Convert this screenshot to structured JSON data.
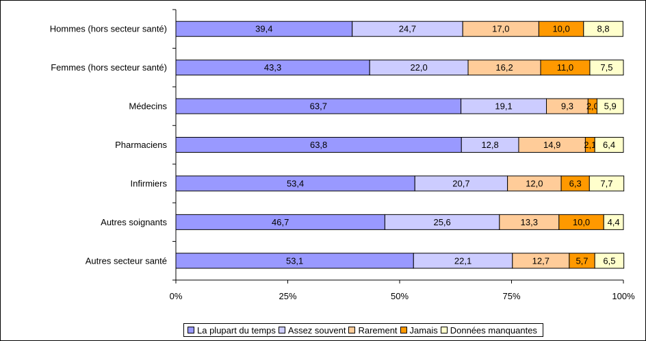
{
  "chart_data": {
    "type": "bar",
    "orientation": "horizontal",
    "stacked": true,
    "percent": true,
    "categories": [
      "Hommes (hors secteur santé)",
      "Femmes (hors secteur santé)",
      "Médecins",
      "Pharmaciens",
      "Infirmiers",
      "Autres soignants",
      "Autres secteur santé"
    ],
    "series": [
      {
        "name": "La plupart du temps",
        "color": "#9999ff",
        "values": [
          39.4,
          43.3,
          63.7,
          63.8,
          53.4,
          46.7,
          53.1
        ],
        "labels": [
          "39,4",
          "43,3",
          "63,7",
          "63,8",
          "53,4",
          "46,7",
          "53,1"
        ]
      },
      {
        "name": "Assez souvent",
        "color": "#ccccff",
        "values": [
          24.7,
          22.0,
          19.1,
          12.8,
          20.7,
          25.6,
          22.1
        ],
        "labels": [
          "24,7",
          "22,0",
          "19,1",
          "12,8",
          "20,7",
          "25,6",
          "22,1"
        ]
      },
      {
        "name": "Rarement",
        "color": "#ffcc99",
        "values": [
          17.0,
          16.2,
          9.3,
          14.9,
          12.0,
          13.3,
          12.7
        ],
        "labels": [
          "17,0",
          "16,2",
          "9,3",
          "14,9",
          "12,0",
          "13,3",
          "12,7"
        ]
      },
      {
        "name": "Jamais",
        "color": "#ff9900",
        "values": [
          10.0,
          11.0,
          2.0,
          2.1,
          6.3,
          10.0,
          5.7
        ],
        "labels": [
          "10,0",
          "11,0",
          "2,0",
          "2,1",
          "6,3",
          "10,0",
          "5,7"
        ]
      },
      {
        "name": "Données manquantes",
        "color": "#ffffcc",
        "values": [
          8.8,
          7.5,
          5.9,
          6.4,
          7.7,
          4.4,
          6.5
        ],
        "labels": [
          "8,8",
          "7,5",
          "5,9",
          "6,4",
          "7,7",
          "4,4",
          "6,5"
        ]
      }
    ],
    "xticks": [
      "0%",
      "25%",
      "50%",
      "75%",
      "100%"
    ],
    "xlim": [
      0,
      100
    ],
    "title": "",
    "xlabel": "",
    "ylabel": "",
    "grid": false,
    "legend_position": "bottom"
  }
}
